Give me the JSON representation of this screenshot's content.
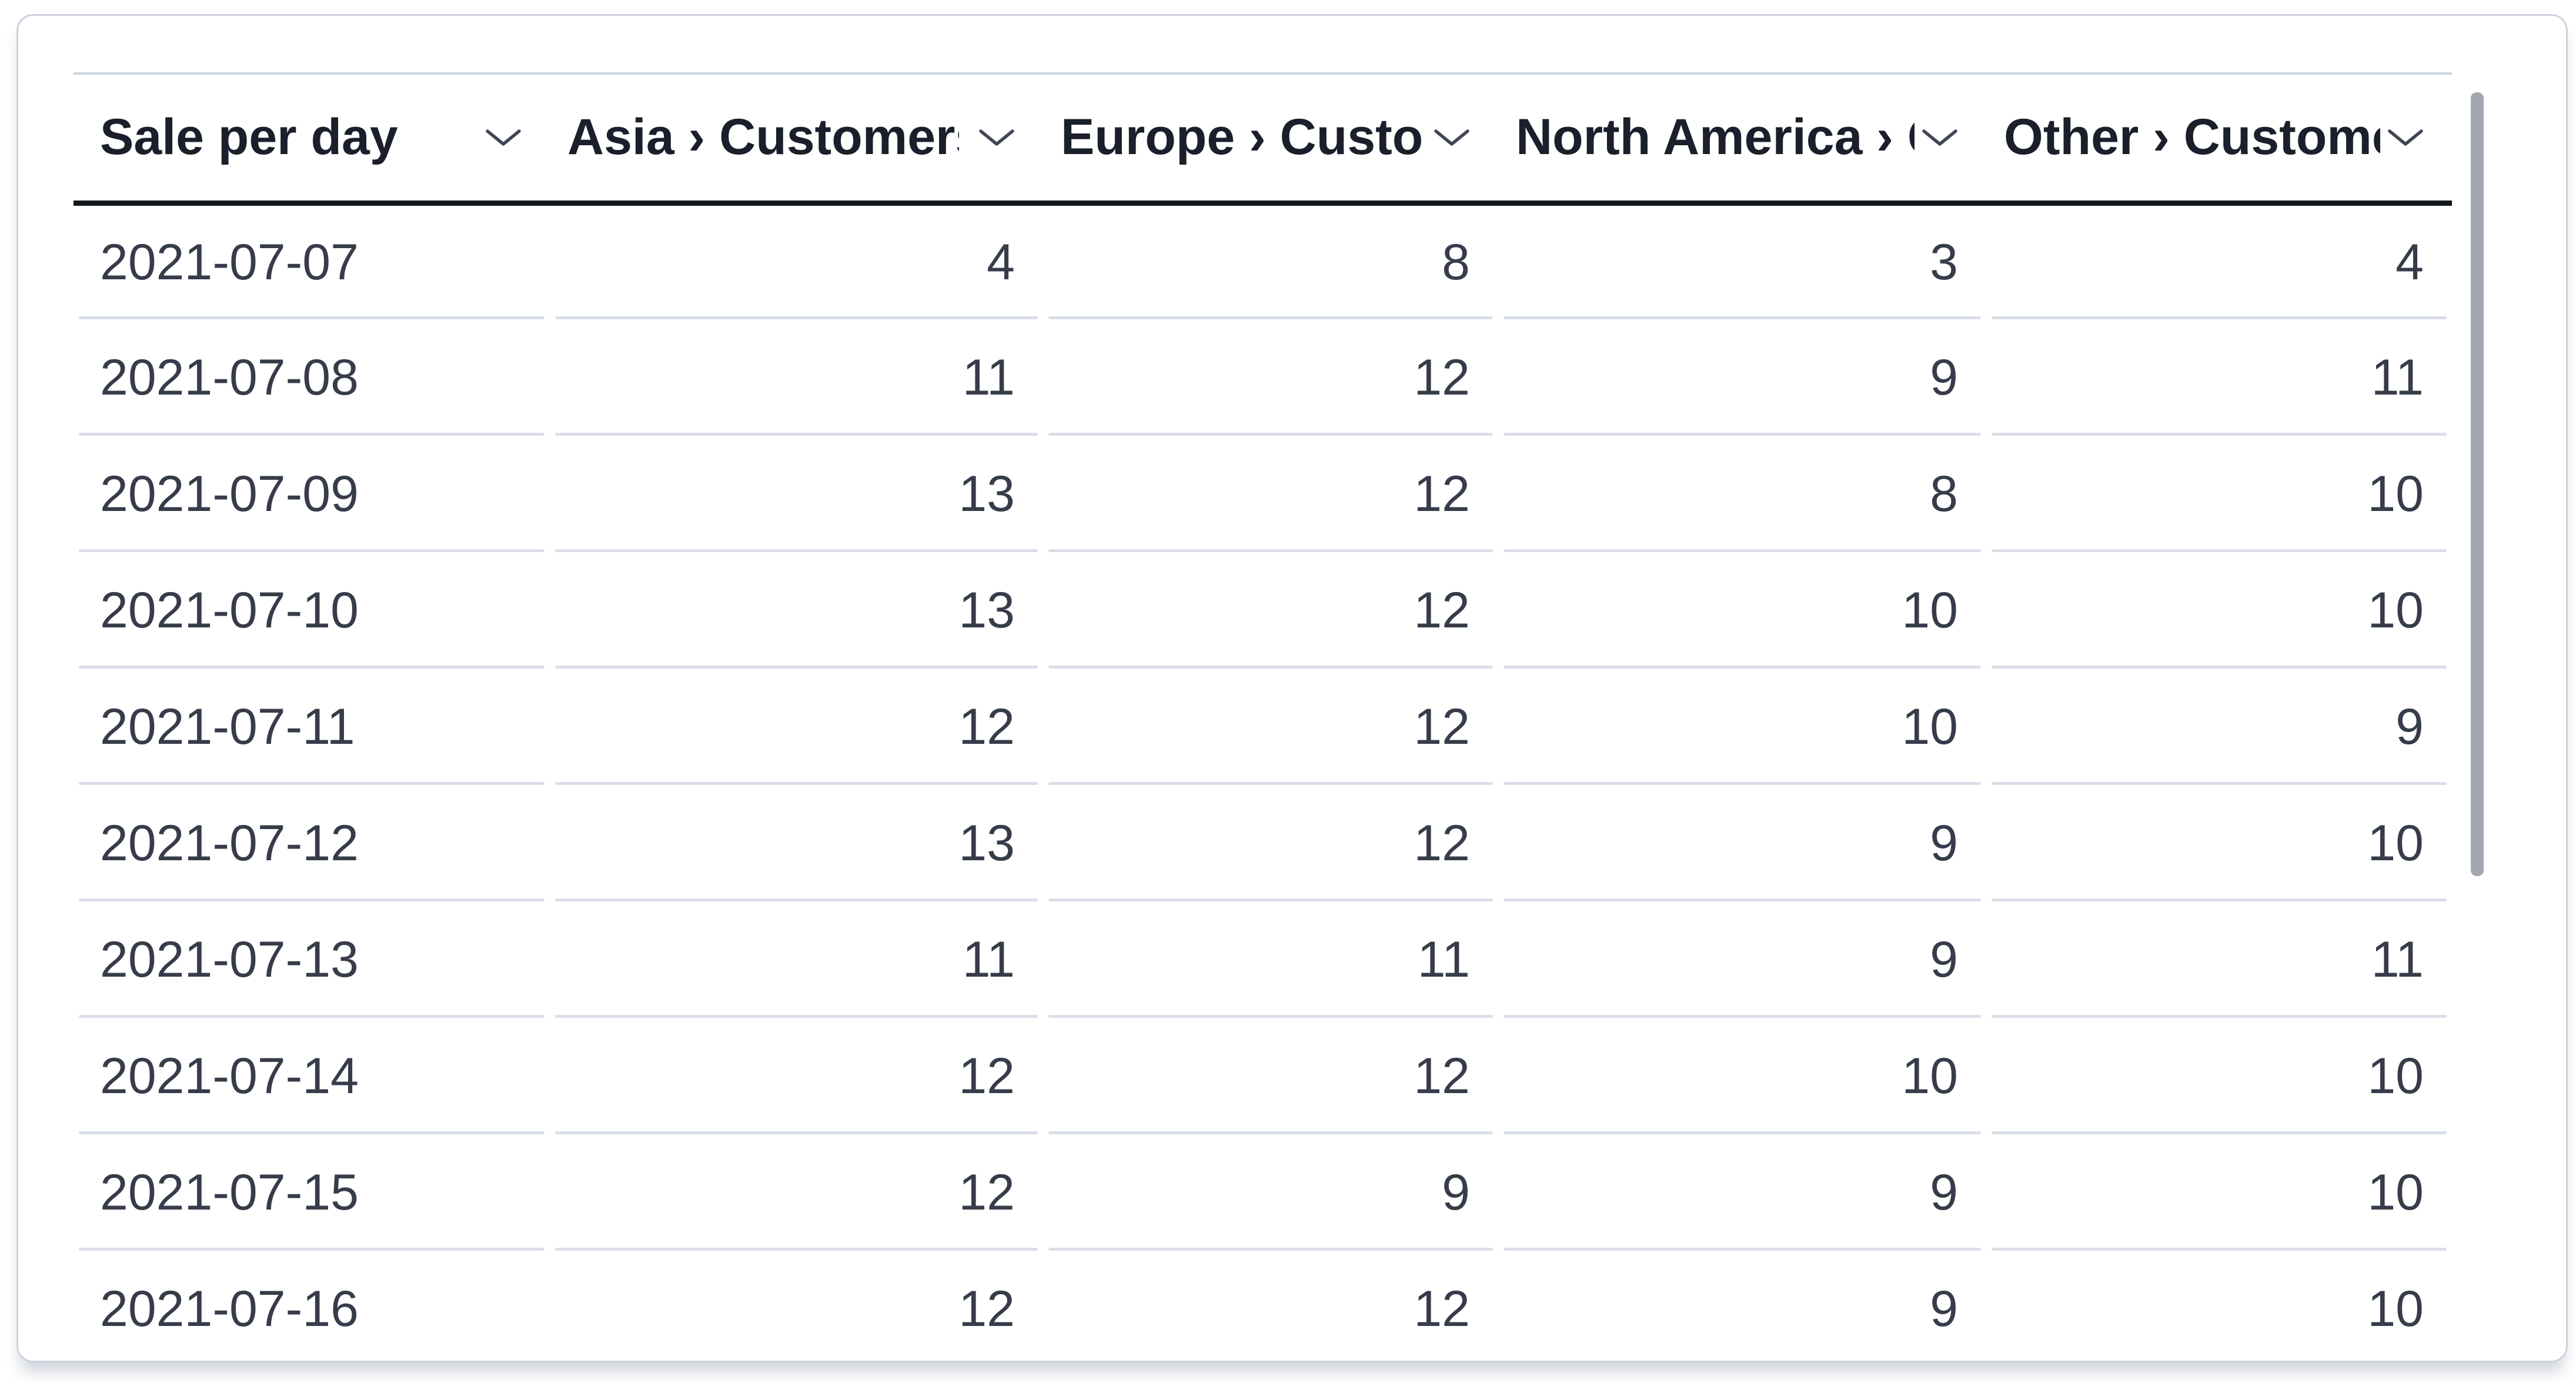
{
  "table": {
    "title": "Sale per day",
    "columns": [
      {
        "label": "Sale per day",
        "type": "date"
      },
      {
        "label": "Asia › Customers",
        "type": "number"
      },
      {
        "label": "Europe › Customers",
        "type": "number"
      },
      {
        "label": "North America › Customers",
        "type": "number"
      },
      {
        "label": "Other › Customers",
        "type": "number"
      }
    ],
    "rows": [
      [
        "2021-07-07",
        4,
        8,
        3,
        4
      ],
      [
        "2021-07-08",
        11,
        12,
        9,
        11
      ],
      [
        "2021-07-09",
        13,
        12,
        8,
        10
      ],
      [
        "2021-07-10",
        13,
        12,
        10,
        10
      ],
      [
        "2021-07-11",
        12,
        12,
        10,
        9
      ],
      [
        "2021-07-12",
        13,
        12,
        9,
        10
      ],
      [
        "2021-07-13",
        11,
        11,
        9,
        11
      ],
      [
        "2021-07-14",
        12,
        12,
        10,
        10
      ],
      [
        "2021-07-15",
        12,
        9,
        9,
        10
      ],
      [
        "2021-07-16",
        12,
        12,
        9,
        10
      ]
    ]
  },
  "icons": {
    "header_sort": "chevron-down"
  },
  "colors": {
    "card_border": "#cbd3e0",
    "grid_top_border": "#ccd4e0",
    "header_underline": "#14171c",
    "header_text": "#1a1f2b",
    "body_text": "#363c49",
    "row_divider": "#d9dee9",
    "scrollbar_thumb": "#a2a7b1",
    "chevron_icon": "#3f4654"
  }
}
